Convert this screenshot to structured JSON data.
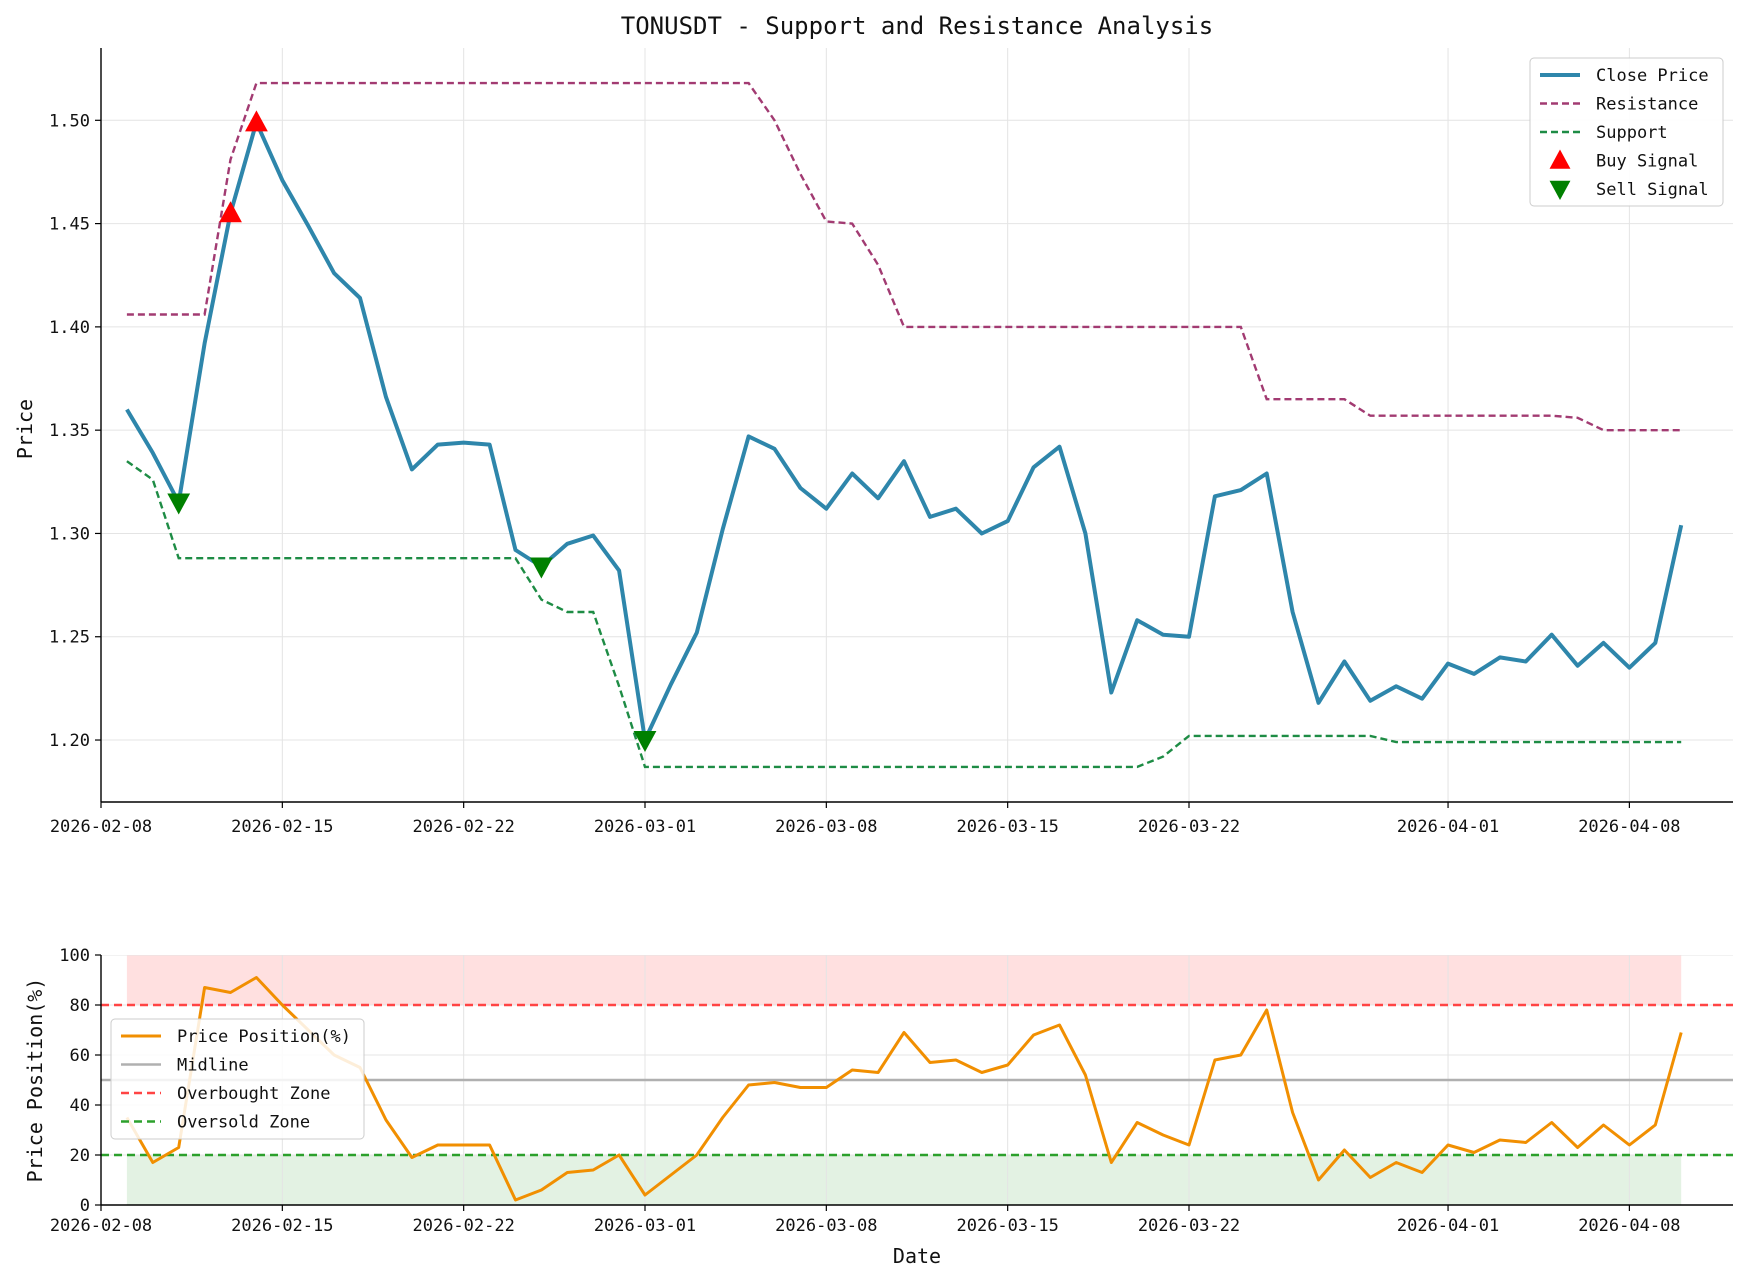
{
  "chart_data": [
    {
      "type": "line",
      "title": "TONUSDT - Support and Resistance Analysis",
      "xlabel": "",
      "ylabel": "Price",
      "ylim": [
        1.17,
        1.535
      ],
      "xlim": [
        "2026-02-08",
        "2026-04-12"
      ],
      "yticks": [
        "1.20",
        "1.25",
        "1.30",
        "1.35",
        "1.40",
        "1.45",
        "1.50"
      ],
      "xticks": [
        "2026-02-08",
        "2026-02-15",
        "2026-02-22",
        "2026-03-01",
        "2026-03-08",
        "2026-03-15",
        "2026-03-22",
        "2026-04-01",
        "2026-04-08"
      ],
      "grid": true,
      "legend_position": "top-right",
      "legend": [
        "Close Price",
        "Resistance",
        "Support",
        "Buy Signal",
        "Sell Signal"
      ],
      "colors": {
        "close": "#2e86ab",
        "resistance": "#a23b72",
        "support": "#1e8c45",
        "buy": "#ff0000",
        "sell": "#008000"
      },
      "dates": [
        "2026-02-09",
        "2026-02-10",
        "2026-02-11",
        "2026-02-12",
        "2026-02-13",
        "2026-02-14",
        "2026-02-15",
        "2026-02-16",
        "2026-02-17",
        "2026-02-18",
        "2026-02-19",
        "2026-02-20",
        "2026-02-21",
        "2026-02-22",
        "2026-02-23",
        "2026-02-24",
        "2026-02-25",
        "2026-02-26",
        "2026-02-27",
        "2026-02-28",
        "2026-03-01",
        "2026-03-02",
        "2026-03-03",
        "2026-03-04",
        "2026-03-05",
        "2026-03-06",
        "2026-03-07",
        "2026-03-08",
        "2026-03-09",
        "2026-03-10",
        "2026-03-11",
        "2026-03-12",
        "2026-03-13",
        "2026-03-14",
        "2026-03-15",
        "2026-03-16",
        "2026-03-17",
        "2026-03-18",
        "2026-03-19",
        "2026-03-20",
        "2026-03-21",
        "2026-03-22",
        "2026-03-23",
        "2026-03-24",
        "2026-03-25",
        "2026-03-26",
        "2026-03-27",
        "2026-03-28",
        "2026-03-29",
        "2026-03-30",
        "2026-03-31",
        "2026-04-01",
        "2026-04-02",
        "2026-04-03",
        "2026-04-04",
        "2026-04-05",
        "2026-04-06",
        "2026-04-07",
        "2026-04-08",
        "2026-04-09",
        "2026-04-10"
      ],
      "series": [
        {
          "name": "Close Price",
          "values": [
            1.36,
            1.339,
            1.315,
            1.392,
            1.455,
            1.499,
            1.471,
            1.449,
            1.426,
            1.414,
            1.366,
            1.331,
            1.343,
            1.344,
            1.343,
            1.292,
            1.284,
            1.295,
            1.299,
            1.282,
            1.2,
            1.227,
            1.252,
            1.302,
            1.347,
            1.341,
            1.322,
            1.312,
            1.329,
            1.317,
            1.335,
            1.308,
            1.312,
            1.3,
            1.306,
            1.332,
            1.342,
            1.3,
            1.223,
            1.258,
            1.251,
            1.25,
            1.318,
            1.321,
            1.329,
            1.262,
            1.218,
            1.238,
            1.219,
            1.226,
            1.22,
            1.237,
            1.232,
            1.24,
            1.238,
            1.251,
            1.236,
            1.247,
            1.235,
            1.247,
            1.304
          ]
        },
        {
          "name": "Resistance",
          "values": [
            1.406,
            1.406,
            1.406,
            1.406,
            1.481,
            1.518,
            1.518,
            1.518,
            1.518,
            1.518,
            1.518,
            1.518,
            1.518,
            1.518,
            1.518,
            1.518,
            1.518,
            1.518,
            1.518,
            1.518,
            1.518,
            1.518,
            1.518,
            1.518,
            1.518,
            1.5,
            1.474,
            1.451,
            1.45,
            1.43,
            1.4,
            1.4,
            1.4,
            1.4,
            1.4,
            1.4,
            1.4,
            1.4,
            1.4,
            1.4,
            1.4,
            1.4,
            1.4,
            1.4,
            1.365,
            1.365,
            1.365,
            1.365,
            1.357,
            1.357,
            1.357,
            1.357,
            1.357,
            1.357,
            1.357,
            1.357,
            1.356,
            1.35,
            1.35,
            1.35,
            1.35
          ]
        },
        {
          "name": "Support",
          "values": [
            1.335,
            1.326,
            1.288,
            1.288,
            1.288,
            1.288,
            1.288,
            1.288,
            1.288,
            1.288,
            1.288,
            1.288,
            1.288,
            1.288,
            1.288,
            1.288,
            1.268,
            1.262,
            1.262,
            1.226,
            1.187,
            1.187,
            1.187,
            1.187,
            1.187,
            1.187,
            1.187,
            1.187,
            1.187,
            1.187,
            1.187,
            1.187,
            1.187,
            1.187,
            1.187,
            1.187,
            1.187,
            1.187,
            1.187,
            1.187,
            1.192,
            1.202,
            1.202,
            1.202,
            1.202,
            1.202,
            1.202,
            1.202,
            1.202,
            1.199,
            1.199,
            1.199,
            1.199,
            1.199,
            1.199,
            1.199,
            1.199,
            1.199,
            1.199,
            1.199,
            1.199
          ]
        }
      ],
      "buy_signals": [
        {
          "x": "2026-02-13",
          "y": 1.455
        },
        {
          "x": "2026-02-14",
          "y": 1.499
        }
      ],
      "sell_signals": [
        {
          "x": "2026-02-11",
          "y": 1.315
        },
        {
          "x": "2026-02-25",
          "y": 1.284
        },
        {
          "x": "2026-03-01",
          "y": 1.2
        }
      ]
    },
    {
      "type": "line",
      "title": "",
      "xlabel": "Date",
      "ylabel": "Price Position(%)",
      "ylim": [
        0,
        100
      ],
      "xlim": [
        "2026-02-08",
        "2026-04-12"
      ],
      "yticks": [
        "0",
        "20",
        "40",
        "60",
        "80",
        "100"
      ],
      "xticks": [
        "2026-02-08",
        "2026-02-15",
        "2026-02-22",
        "2026-03-01",
        "2026-03-08",
        "2026-03-15",
        "2026-03-22",
        "2026-04-01",
        "2026-04-08"
      ],
      "grid": true,
      "legend_position": "center-left",
      "legend": [
        "Price Position(%)",
        "Midline",
        "Overbought Zone",
        "Oversold Zone"
      ],
      "colors": {
        "position": "#f18f01",
        "midline": "#b0b0b0",
        "overbought": "#ff4444",
        "oversold": "#2ca02c",
        "overbought_fill": "#ffe0e0",
        "oversold_fill": "#e3f2e3"
      },
      "midline": 50,
      "overbought": 80,
      "oversold": 20,
      "series": [
        {
          "name": "Price Position(%)",
          "values": [
            35,
            17,
            23,
            87,
            85,
            91,
            80,
            70,
            60,
            55,
            34,
            19,
            24,
            24,
            24,
            2,
            6,
            13,
            14,
            20,
            4,
            12,
            20,
            35,
            48,
            49,
            47,
            47,
            54,
            53,
            69,
            57,
            58,
            53,
            56,
            68,
            72,
            52,
            17,
            33,
            28,
            24,
            58,
            60,
            78,
            37,
            10,
            22,
            11,
            17,
            13,
            24,
            21,
            26,
            25,
            33,
            23,
            32,
            24,
            32,
            69
          ]
        }
      ]
    }
  ]
}
